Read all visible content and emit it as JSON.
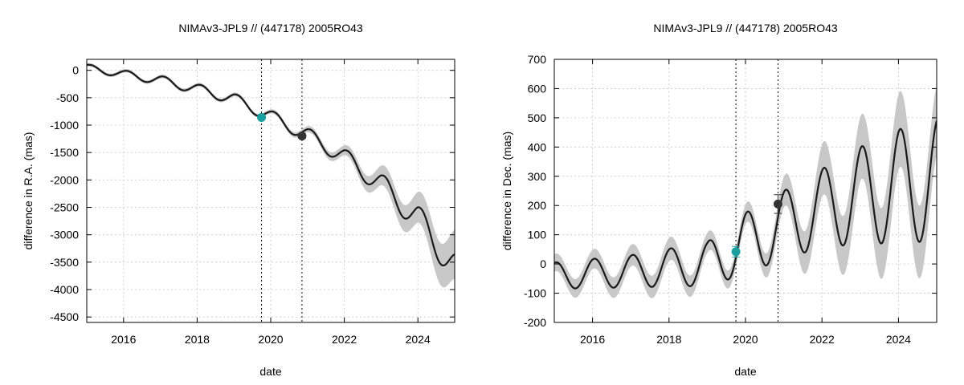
{
  "chart_data": [
    {
      "type": "line",
      "title": "NIMAv3-JPL9 // (447178) 2005RO43",
      "xlabel": "date",
      "ylabel": "difference in R.A. (mas)",
      "xlim": [
        2015.0,
        2025.0
      ],
      "ylim": [
        -4600,
        200
      ],
      "xticks": [
        2016,
        2018,
        2020,
        2022,
        2024
      ],
      "xtick_labels": [
        "2016",
        "2018",
        "2020",
        "2022",
        "2024"
      ],
      "yticks": [
        0,
        -500,
        -1000,
        -1500,
        -2000,
        -2500,
        -3000,
        -3500,
        -4000,
        -4500
      ],
      "ytick_labels": [
        "0",
        "-500",
        "-1000",
        "-1500",
        "-2000",
        "-2500",
        "-3000",
        "-3500",
        "-4000",
        "-4500"
      ],
      "grid": true,
      "reference_lines_x": [
        2019.75,
        2020.85
      ],
      "curve_model": {
        "trend": [
          [
            2015.0,
            50
          ],
          [
            2016.0,
            -70
          ],
          [
            2017.0,
            -180
          ],
          [
            2018.0,
            -340
          ],
          [
            2019.0,
            -520
          ],
          [
            2020.0,
            -840
          ],
          [
            2021.0,
            -1180
          ],
          [
            2022.0,
            -1580
          ],
          [
            2023.0,
            -2080
          ],
          [
            2024.0,
            -2700
          ],
          [
            2025.0,
            -3600
          ]
        ],
        "amplitude": [
          [
            2015.0,
            60
          ],
          [
            2020.0,
            110
          ],
          [
            2022.0,
            150
          ],
          [
            2025.0,
            300
          ]
        ],
        "sigma": [
          [
            2015.0,
            30
          ],
          [
            2019.7,
            35
          ],
          [
            2020.8,
            50
          ],
          [
            2022.0,
            90
          ],
          [
            2023.0,
            180
          ],
          [
            2024.0,
            280
          ],
          [
            2025.0,
            450
          ]
        ],
        "period": 1.0,
        "peak": 2015.1
      },
      "points": [
        {
          "x": 2019.75,
          "y": -860,
          "err": 25,
          "color": "#1a9e9e"
        },
        {
          "x": 2020.85,
          "y": -1200,
          "err": 35,
          "color": "#333333"
        }
      ]
    },
    {
      "type": "line",
      "title": "NIMAv3-JPL9 // (447178) 2005RO43",
      "xlabel": "date",
      "ylabel": "difference in Dec. (mas)",
      "xlim": [
        2015.0,
        2025.0
      ],
      "ylim": [
        -200,
        700
      ],
      "xticks": [
        2016,
        2018,
        2020,
        2022,
        2024
      ],
      "xtick_labels": [
        "2016",
        "2018",
        "2020",
        "2022",
        "2024"
      ],
      "yticks": [
        700,
        600,
        500,
        400,
        300,
        200,
        100,
        0,
        -100,
        -200
      ],
      "ytick_labels": [
        "700",
        "600",
        "500",
        "400",
        "300",
        "200",
        "100",
        "0",
        "-100",
        "-200"
      ],
      "grid": true,
      "reference_lines_x": [
        2019.75,
        2020.85
      ],
      "curve_model": {
        "trend": [
          [
            2015.0,
            -40
          ],
          [
            2017.0,
            -25
          ],
          [
            2019.0,
            0
          ],
          [
            2020.0,
            70
          ],
          [
            2021.0,
            135
          ],
          [
            2022.0,
            190
          ],
          [
            2023.0,
            235
          ],
          [
            2024.0,
            265
          ],
          [
            2025.0,
            290
          ]
        ],
        "amplitude": [
          [
            2015.0,
            45
          ],
          [
            2017.0,
            55
          ],
          [
            2019.0,
            75
          ],
          [
            2020.0,
            105
          ],
          [
            2021.0,
            115
          ],
          [
            2022.0,
            135
          ],
          [
            2023.0,
            165
          ],
          [
            2024.0,
            195
          ],
          [
            2025.0,
            210
          ]
        ],
        "sigma": [
          [
            2015.0,
            30
          ],
          [
            2018.0,
            40
          ],
          [
            2019.7,
            30
          ],
          [
            2020.8,
            45
          ],
          [
            2022.0,
            90
          ],
          [
            2023.0,
            110
          ],
          [
            2024.0,
            130
          ],
          [
            2025.0,
            120
          ]
        ],
        "period": 1.0,
        "peak": 2024.05
      },
      "points": [
        {
          "x": 2019.75,
          "y": 42,
          "err": 18,
          "color": "#1a9e9e"
        },
        {
          "x": 2020.85,
          "y": 205,
          "err": 32,
          "color": "#333333"
        }
      ]
    }
  ]
}
